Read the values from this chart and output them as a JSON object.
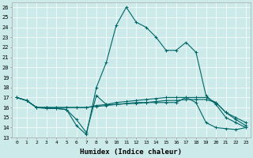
{
  "xlabel": "Humidex (Indice chaleur)",
  "bg_color": "#cceaea",
  "grid_color": "#ffffff",
  "line_color": "#006666",
  "xlim": [
    -0.5,
    23.5
  ],
  "ylim": [
    13,
    26.5
  ],
  "yticks": [
    13,
    14,
    15,
    16,
    17,
    18,
    19,
    20,
    21,
    22,
    23,
    24,
    25,
    26
  ],
  "xtick_labels": [
    "0",
    "1",
    "2",
    "3",
    "4",
    "5",
    "6",
    "7",
    "8",
    "9",
    "10",
    "11",
    "12",
    "13",
    "14",
    "15",
    "16",
    "17",
    "18",
    "19",
    "20",
    "21",
    "22",
    "23"
  ],
  "series": [
    {
      "x": [
        0,
        1,
        2,
        3,
        4,
        5,
        6,
        7,
        8,
        9,
        10,
        11,
        12,
        13,
        14,
        15,
        16,
        17,
        18,
        19,
        20,
        21,
        22,
        23
      ],
      "y": [
        17,
        16.7,
        16.0,
        15.9,
        15.9,
        15.8,
        14.2,
        13.3,
        18.0,
        20.5,
        24.2,
        26.0,
        24.5,
        24.0,
        23.0,
        21.7,
        21.7,
        22.5,
        21.5,
        17.2,
        16.3,
        15.0,
        14.5,
        14.0
      ]
    },
    {
      "x": [
        0,
        1,
        2,
        3,
        4,
        5,
        6,
        7,
        8,
        9,
        10,
        11,
        12,
        13,
        14,
        15,
        16,
        17,
        18,
        19,
        20,
        21,
        22,
        23
      ],
      "y": [
        17,
        16.7,
        16.0,
        16.0,
        15.9,
        15.8,
        14.8,
        13.5,
        17.2,
        16.3,
        16.3,
        16.4,
        16.4,
        16.5,
        16.5,
        16.5,
        16.5,
        17.0,
        16.5,
        14.5,
        14.0,
        13.9,
        13.8,
        14.0
      ]
    },
    {
      "x": [
        0,
        1,
        2,
        3,
        4,
        5,
        6,
        7,
        8,
        9,
        10,
        11,
        12,
        13,
        14,
        15,
        16,
        17,
        18,
        19,
        20,
        21,
        22,
        23
      ],
      "y": [
        17,
        16.7,
        16.0,
        16.0,
        16.0,
        16.0,
        16.0,
        16.0,
        16.1,
        16.2,
        16.3,
        16.4,
        16.5,
        16.5,
        16.6,
        16.7,
        16.7,
        16.8,
        16.8,
        16.8,
        16.5,
        15.5,
        15.0,
        14.5
      ]
    },
    {
      "x": [
        0,
        1,
        2,
        3,
        4,
        5,
        6,
        7,
        8,
        9,
        10,
        11,
        12,
        13,
        14,
        15,
        16,
        17,
        18,
        19,
        20,
        21,
        22,
        23
      ],
      "y": [
        17,
        16.7,
        16.0,
        16.0,
        16.0,
        16.0,
        16.0,
        16.0,
        16.2,
        16.3,
        16.5,
        16.6,
        16.7,
        16.8,
        16.9,
        17.0,
        17.0,
        17.0,
        17.0,
        17.0,
        16.5,
        15.5,
        14.8,
        14.2
      ]
    }
  ]
}
